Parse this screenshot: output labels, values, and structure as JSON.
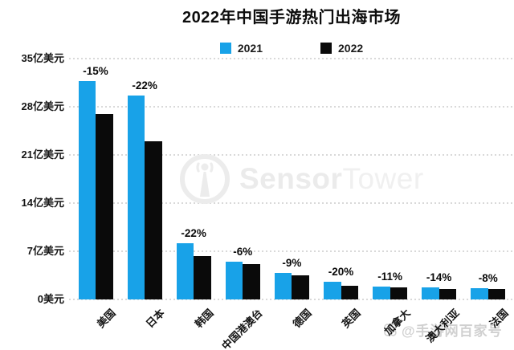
{
  "title": "2022年中国手游热门出海市场",
  "legend": {
    "items": [
      {
        "label": "2021",
        "color": "#18a2e8"
      },
      {
        "label": "2022",
        "color": "#0a0a0a"
      }
    ]
  },
  "watermarks": {
    "sensortower": {
      "text_bold": "Sensor",
      "text_light": "Tower",
      "color": "#ececec"
    },
    "source": {
      "text": "@手游网百家号",
      "color": "#aaaaaa"
    }
  },
  "chart_data": {
    "type": "bar",
    "title": "2022年中国手游热门出海市场",
    "unit": "亿美元",
    "categories": [
      "美国",
      "日本",
      "韩国",
      "中国港澳台",
      "德国",
      "英国",
      "加拿大",
      "澳大利亚",
      "法国"
    ],
    "series": [
      {
        "name": "2021",
        "color": "#18a2e8",
        "values": [
          31.7,
          29.6,
          8.2,
          5.5,
          3.9,
          2.6,
          1.9,
          1.8,
          1.6
        ]
      },
      {
        "name": "2022",
        "color": "#0a0a0a",
        "values": [
          27.0,
          23.0,
          6.3,
          5.1,
          3.5,
          2.0,
          1.7,
          1.5,
          1.5
        ]
      }
    ],
    "change_labels": [
      "-15%",
      "-22%",
      "-22%",
      "-6%",
      "-9%",
      "-20%",
      "-11%",
      "-14%",
      "-8%"
    ],
    "y_ticks": [
      {
        "value": 35,
        "label": "35亿美元"
      },
      {
        "value": 28,
        "label": "28亿美元"
      },
      {
        "value": 21,
        "label": "21亿美元"
      },
      {
        "value": 14,
        "label": "14亿美元"
      },
      {
        "value": 7,
        "label": "7亿美元"
      },
      {
        "value": 0,
        "label": "0美元"
      }
    ],
    "ylim": [
      0,
      35
    ],
    "grid": "horizontal-dotted",
    "legend_position": "top-center",
    "x_label_rotation_deg": 45
  }
}
